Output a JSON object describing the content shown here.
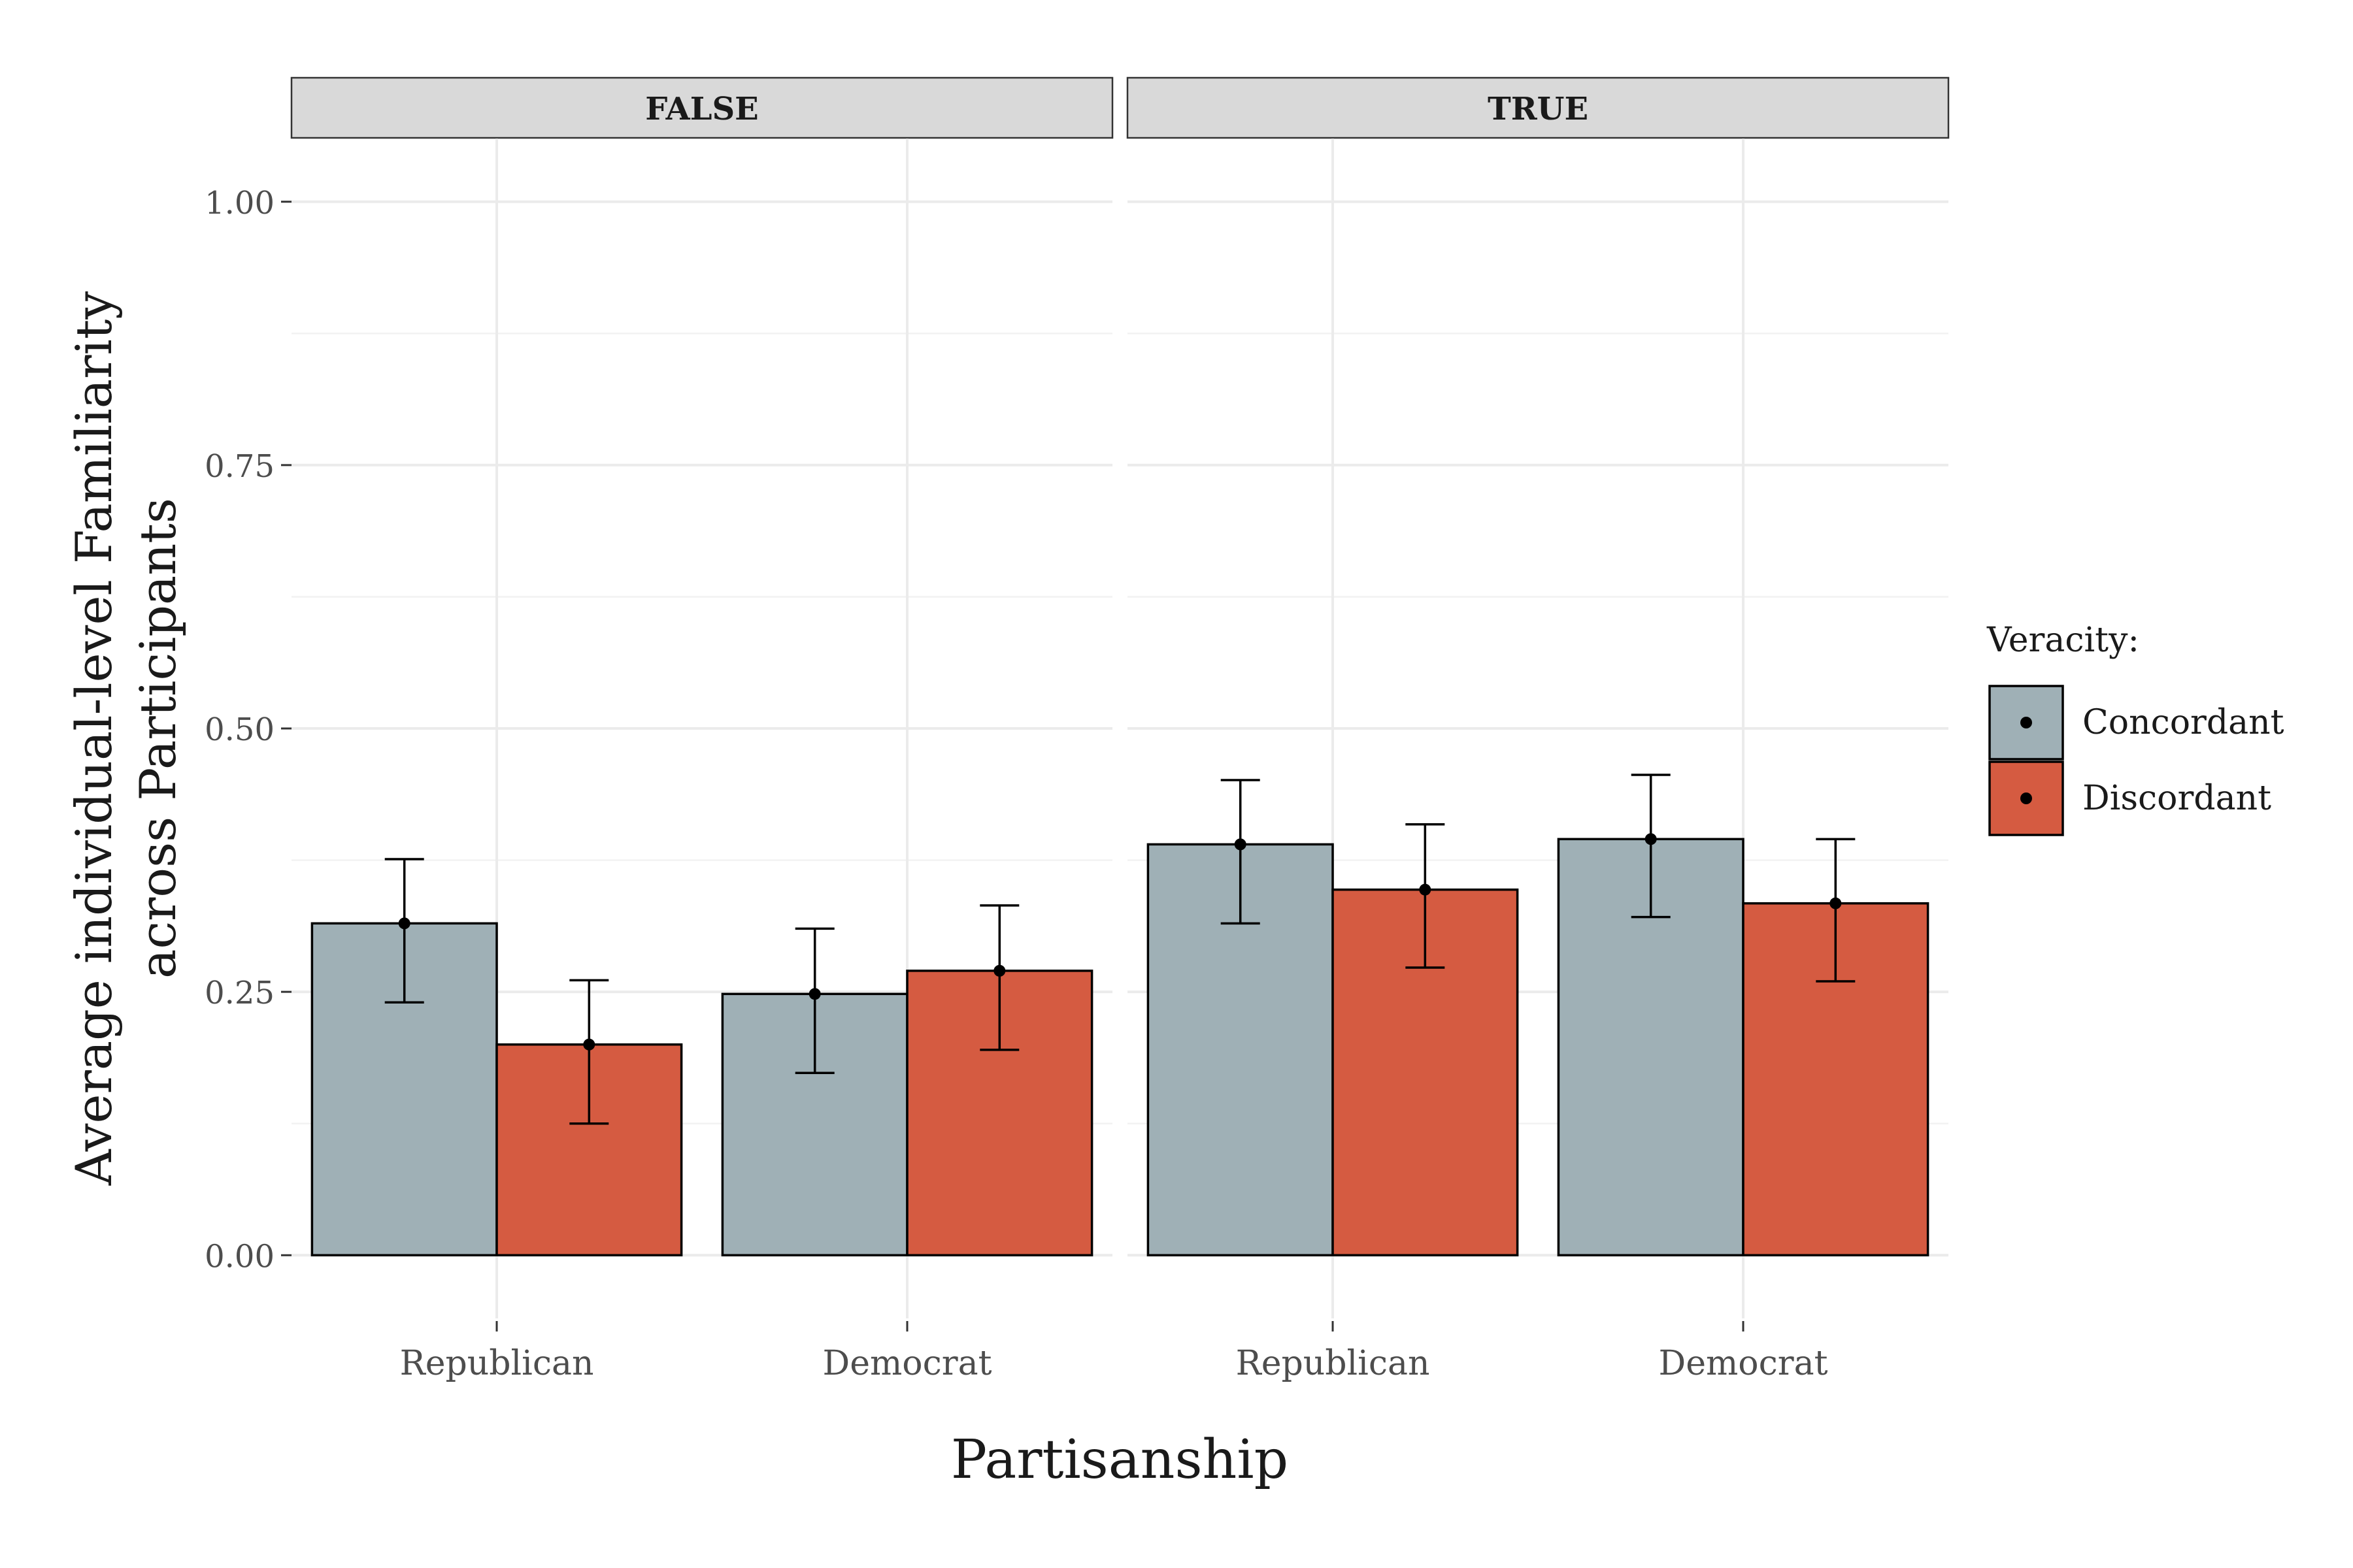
{
  "chart_data": {
    "type": "bar",
    "xlabel": "Partisanship",
    "ylabel_lines": [
      "Average individual-level Familiarity",
      "across Participants"
    ],
    "ylim": [
      -0.06,
      1.06
    ],
    "yticks": [
      0.0,
      0.25,
      0.5,
      0.75,
      1.0
    ],
    "ytick_labels": [
      "0.00",
      "0.25",
      "0.50",
      "0.75",
      "1.00"
    ],
    "categories": [
      "Republican",
      "Democrat"
    ],
    "grid": true,
    "legend": {
      "title": "Veracity:",
      "placement": "right",
      "entries": [
        "Concordant",
        "Discordant"
      ]
    },
    "colors": {
      "Concordant": "#9fb0b6",
      "Discordant": "#d55b41"
    },
    "panels": [
      {
        "title": "FALSE",
        "series": [
          {
            "name": "Concordant",
            "values": [
              0.315,
              0.248
            ],
            "lower": [
              0.24,
              0.173
            ],
            "upper": [
              0.376,
              0.31
            ]
          },
          {
            "name": "Discordant",
            "values": [
              0.2,
              0.27
            ],
            "lower": [
              0.125,
              0.195
            ],
            "upper": [
              0.261,
              0.332
            ]
          }
        ]
      },
      {
        "title": "TRUE",
        "series": [
          {
            "name": "Concordant",
            "values": [
              0.39,
              0.395
            ],
            "lower": [
              0.315,
              0.321
            ],
            "upper": [
              0.451,
              0.456
            ]
          },
          {
            "name": "Discordant",
            "values": [
              0.347,
              0.334
            ],
            "lower": [
              0.273,
              0.26
            ],
            "upper": [
              0.409,
              0.395
            ]
          }
        ]
      }
    ]
  }
}
